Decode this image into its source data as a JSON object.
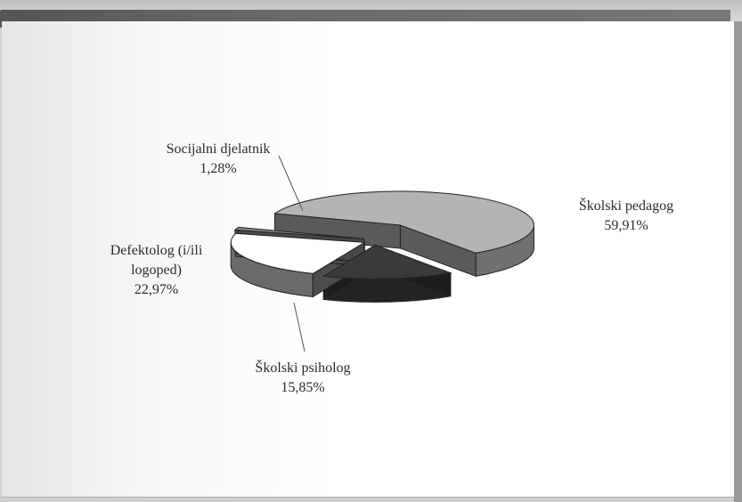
{
  "chart_data": {
    "type": "pie",
    "title": "",
    "slices": [
      {
        "label": "Školski pedagog",
        "value": 59.91,
        "value_label": "59,91%",
        "color": "#b4b4b4"
      },
      {
        "label": "Školski psiholog",
        "value": 15.85,
        "value_label": "15,85%",
        "color": "#3a3a3a"
      },
      {
        "label": "Defektolog (i/ili logoped)",
        "value": 22.97,
        "value_label": "22,97%",
        "color": "#ffffff"
      },
      {
        "label": "Socijalni djelatnik",
        "value": 1.28,
        "value_label": "1,28%",
        "color": "#909090"
      }
    ],
    "label_lines": {
      "pedagog": [
        "Školski pedagog",
        "59,91%"
      ],
      "psiholog": [
        "Školski psiholog",
        "15,85%"
      ],
      "defektolog": [
        "Defektolog (i/ili",
        "logoped)",
        "22,97%"
      ],
      "socijalni": [
        "Socijalni djelatnik",
        "1,28%"
      ]
    },
    "style": "3d-exploded"
  }
}
